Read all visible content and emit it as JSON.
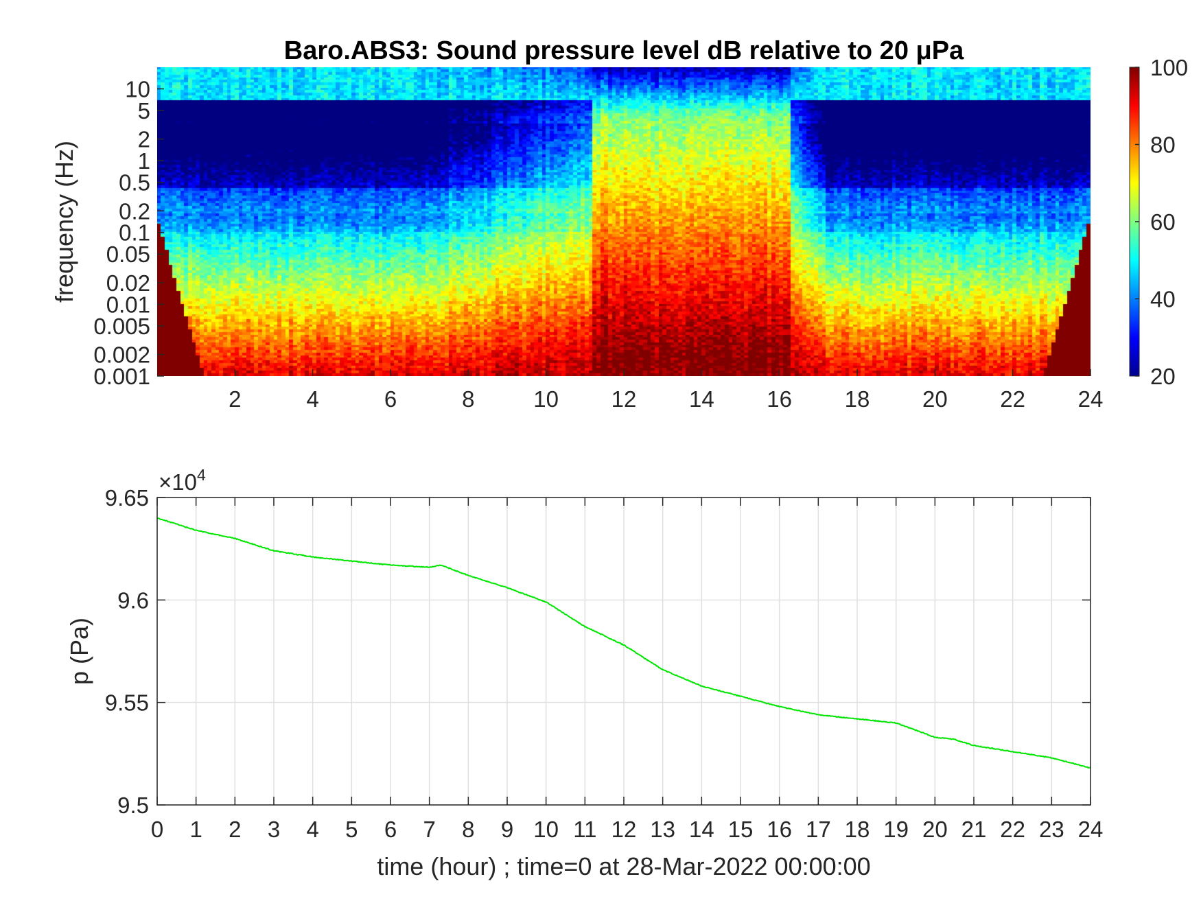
{
  "chart_data": [
    {
      "type": "heatmap",
      "title": "Baro.ABS3: Sound pressure level dB relative to 20 μPa",
      "ylabel": "frequency (Hz)",
      "xlabel": "",
      "xlim": [
        0,
        24
      ],
      "x_ticks": [
        2,
        4,
        6,
        8,
        10,
        12,
        14,
        16,
        18,
        20,
        22,
        24
      ],
      "y_scale": "log",
      "ylim": [
        0.001,
        20
      ],
      "y_ticks": [
        0.001,
        0.002,
        0.005,
        0.01,
        0.02,
        0.05,
        0.1,
        0.2,
        0.5,
        1,
        2,
        5,
        10
      ],
      "y_tick_labels": [
        "0.001",
        "0.002",
        "0.005",
        "0.01",
        "0.02",
        "0.05",
        "0.1",
        "0.2",
        "0.5",
        "1",
        "2",
        "5",
        "10"
      ],
      "colormap": "jet",
      "clim": [
        20,
        100
      ],
      "colorbar_ticks": [
        20,
        40,
        60,
        80,
        100
      ],
      "activity_window_hours": [
        11.2,
        16.3
      ]
    },
    {
      "type": "line",
      "ylabel": "p (Pa)",
      "xlabel": "time (hour) ; time=0 at 28-Mar-2022 00:00:00",
      "xlim": [
        0,
        24
      ],
      "ylim": [
        95000,
        96500
      ],
      "y_exponent_label": "×10",
      "y_exponent_power": "4",
      "x_ticks": [
        0,
        1,
        2,
        3,
        4,
        5,
        6,
        7,
        8,
        9,
        10,
        11,
        12,
        13,
        14,
        15,
        16,
        17,
        18,
        19,
        20,
        21,
        22,
        23,
        24
      ],
      "y_ticks": [
        95000,
        95500,
        96000,
        96500
      ],
      "y_tick_labels": [
        "9.5",
        "9.55",
        "9.6",
        "9.65"
      ],
      "grid": true,
      "series": [
        {
          "color": "#00e600",
          "x": [
            0,
            1,
            2,
            3,
            4,
            5,
            6,
            7,
            7.3,
            8,
            9,
            10,
            11,
            12,
            13,
            14,
            15,
            16,
            17,
            18,
            19,
            20,
            20.5,
            21,
            22,
            23,
            24
          ],
          "y": [
            96400,
            96340,
            96300,
            96240,
            96210,
            96190,
            96170,
            96160,
            96170,
            96120,
            96060,
            95990,
            95870,
            95780,
            95660,
            95580,
            95530,
            95480,
            95440,
            95420,
            95400,
            95330,
            95320,
            95290,
            95260,
            95230,
            95180
          ]
        }
      ]
    }
  ]
}
